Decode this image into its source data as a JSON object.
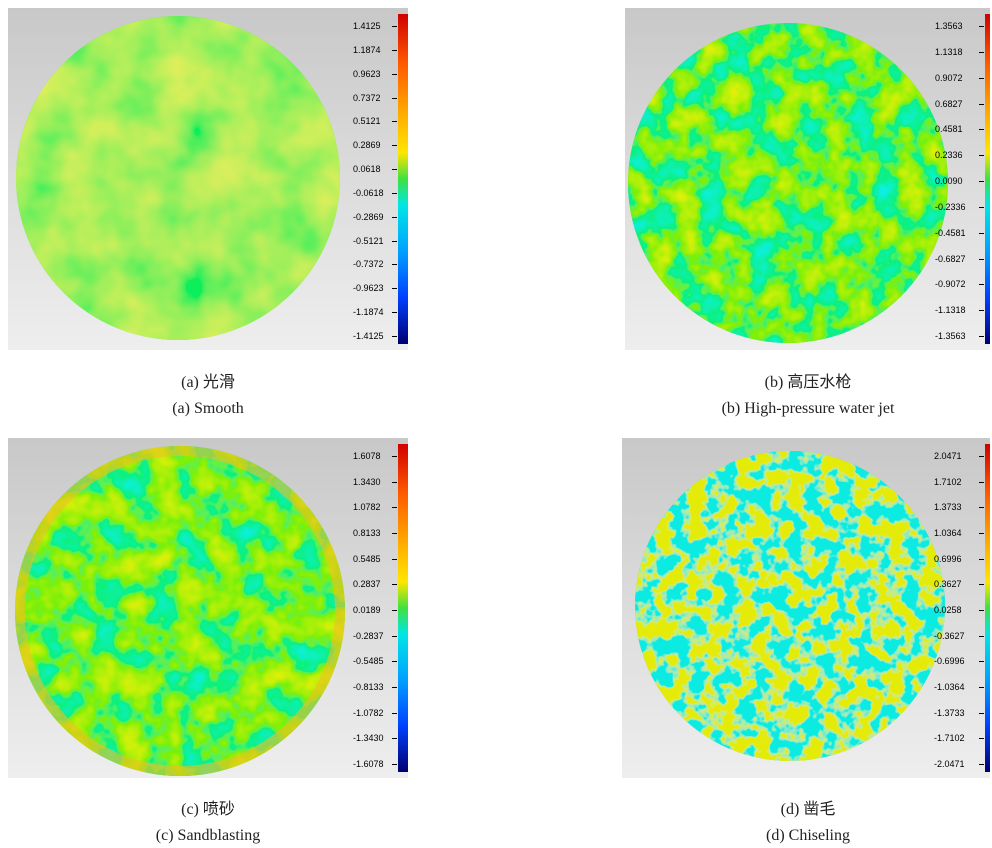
{
  "panels": [
    {
      "colorbar": [
        "1.4125",
        "1.1874",
        "0.9623",
        "0.7372",
        "0.5121",
        "0.2869",
        "0.0618",
        "-0.0618",
        "-0.2869",
        "-0.5121",
        "-0.7372",
        "-0.9623",
        "-1.1874",
        "-1.4125"
      ],
      "caption_cn": "(a)  光滑",
      "caption_en": "(a)  Smooth"
    },
    {
      "colorbar": [
        "1.3563",
        "1.1318",
        "0.9072",
        "0.6827",
        "0.4581",
        "0.2336",
        "0.0090",
        "-0.2336",
        "-0.4581",
        "-0.6827",
        "-0.9072",
        "-1.1318",
        "-1.3563"
      ],
      "caption_cn": "(b)  高压水枪",
      "caption_en": "(b)  High-pressure water jet"
    },
    {
      "colorbar": [
        "1.6078",
        "1.3430",
        "1.0782",
        "0.8133",
        "0.5485",
        "0.2837",
        "0.0189",
        "-0.2837",
        "-0.5485",
        "-0.8133",
        "-1.0782",
        "-1.3430",
        "-1.6078"
      ],
      "caption_cn": "(c)  喷砂",
      "caption_en": "(c)  Sandblasting"
    },
    {
      "colorbar": [
        "2.0471",
        "1.7102",
        "1.3733",
        "1.0364",
        "0.6996",
        "0.3627",
        "0.0258",
        "-0.3627",
        "-0.6996",
        "-1.0364",
        "-1.3733",
        "-1.7102",
        "-2.0471"
      ],
      "caption_cn": "(d)  凿毛",
      "caption_en": "(d)  Chiseling"
    }
  ]
}
